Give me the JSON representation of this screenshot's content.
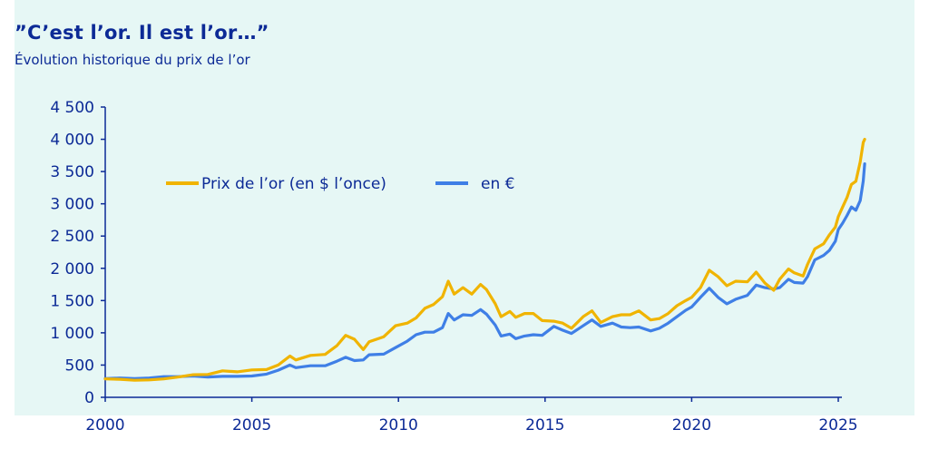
{
  "header": {
    "title": "”C’est l’or. Il est l’or…”",
    "subtitle": "Évolution historique du prix de l’or"
  },
  "colors": {
    "background": "#e6f7f5",
    "text": "#0c2a96",
    "usd": "#f0b400",
    "eur": "#3f7fe6",
    "axis": "#0c2a96"
  },
  "chart_data": {
    "type": "line",
    "title": "”C’est l’or. Il est l’or…”",
    "subtitle": "Évolution historique du prix de l’or",
    "xlim": [
      2000,
      2025
    ],
    "ylim": [
      0,
      4500
    ],
    "x_ticks": [
      2000,
      2005,
      2010,
      2015,
      2020,
      2025
    ],
    "x_tick_labels": [
      "2000",
      "2005",
      "2010",
      "2015",
      "2020",
      "2025"
    ],
    "y_ticks": [
      0,
      500,
      1000,
      1500,
      2000,
      2500,
      3000,
      3500,
      4000,
      4500
    ],
    "y_tick_labels": [
      "0",
      "500",
      "1 000",
      "1 500",
      "2 000",
      "2 500",
      "3 000",
      "3 500",
      "4 000",
      "4 500"
    ],
    "grid": false,
    "legend": "inside top-left",
    "series": [
      {
        "name": "Prix de l’or (en $ l’once)",
        "color": "#f0b400",
        "points": [
          [
            2000.0,
            285
          ],
          [
            2000.5,
            280
          ],
          [
            2001.0,
            265
          ],
          [
            2001.5,
            270
          ],
          [
            2002.0,
            285
          ],
          [
            2002.5,
            315
          ],
          [
            2003.0,
            350
          ],
          [
            2003.5,
            355
          ],
          [
            2004.0,
            410
          ],
          [
            2004.5,
            395
          ],
          [
            2005.0,
            425
          ],
          [
            2005.5,
            430
          ],
          [
            2005.9,
            500
          ],
          [
            2006.3,
            640
          ],
          [
            2006.5,
            580
          ],
          [
            2007.0,
            650
          ],
          [
            2007.5,
            665
          ],
          [
            2007.9,
            800
          ],
          [
            2008.2,
            960
          ],
          [
            2008.5,
            900
          ],
          [
            2008.8,
            740
          ],
          [
            2009.0,
            860
          ],
          [
            2009.5,
            940
          ],
          [
            2009.9,
            1110
          ],
          [
            2010.3,
            1150
          ],
          [
            2010.6,
            1230
          ],
          [
            2010.9,
            1380
          ],
          [
            2011.2,
            1440
          ],
          [
            2011.5,
            1560
          ],
          [
            2011.7,
            1800
          ],
          [
            2011.9,
            1600
          ],
          [
            2012.2,
            1700
          ],
          [
            2012.5,
            1600
          ],
          [
            2012.8,
            1750
          ],
          [
            2013.0,
            1670
          ],
          [
            2013.3,
            1450
          ],
          [
            2013.5,
            1250
          ],
          [
            2013.8,
            1330
          ],
          [
            2014.0,
            1240
          ],
          [
            2014.3,
            1300
          ],
          [
            2014.6,
            1300
          ],
          [
            2014.9,
            1190
          ],
          [
            2015.3,
            1180
          ],
          [
            2015.6,
            1150
          ],
          [
            2015.9,
            1070
          ],
          [
            2016.3,
            1250
          ],
          [
            2016.6,
            1340
          ],
          [
            2016.9,
            1160
          ],
          [
            2017.3,
            1250
          ],
          [
            2017.6,
            1280
          ],
          [
            2017.9,
            1280
          ],
          [
            2018.2,
            1340
          ],
          [
            2018.6,
            1200
          ],
          [
            2018.9,
            1220
          ],
          [
            2019.2,
            1300
          ],
          [
            2019.5,
            1420
          ],
          [
            2019.8,
            1500
          ],
          [
            2020.0,
            1550
          ],
          [
            2020.3,
            1700
          ],
          [
            2020.6,
            1970
          ],
          [
            2020.9,
            1870
          ],
          [
            2021.2,
            1730
          ],
          [
            2021.5,
            1800
          ],
          [
            2021.9,
            1790
          ],
          [
            2022.2,
            1940
          ],
          [
            2022.5,
            1770
          ],
          [
            2022.8,
            1660
          ],
          [
            2023.0,
            1830
          ],
          [
            2023.3,
            1990
          ],
          [
            2023.5,
            1930
          ],
          [
            2023.8,
            1880
          ],
          [
            2023.95,
            2060
          ],
          [
            2024.2,
            2300
          ],
          [
            2024.5,
            2380
          ],
          [
            2024.7,
            2520
          ],
          [
            2024.9,
            2640
          ],
          [
            2025.0,
            2800
          ],
          [
            2025.15,
            2950
          ],
          [
            2025.3,
            3100
          ],
          [
            2025.45,
            3300
          ],
          [
            2025.6,
            3350
          ],
          [
            2025.75,
            3650
          ],
          [
            2025.85,
            3950
          ],
          [
            2025.9,
            4000
          ]
        ]
      },
      {
        "name": "en €",
        "color": "#3f7fe6",
        "points": [
          [
            2000.0,
            290
          ],
          [
            2000.5,
            300
          ],
          [
            2001.0,
            290
          ],
          [
            2001.5,
            300
          ],
          [
            2002.0,
            320
          ],
          [
            2002.5,
            320
          ],
          [
            2003.0,
            330
          ],
          [
            2003.5,
            315
          ],
          [
            2004.0,
            325
          ],
          [
            2004.5,
            325
          ],
          [
            2005.0,
            330
          ],
          [
            2005.5,
            360
          ],
          [
            2005.9,
            420
          ],
          [
            2006.3,
            500
          ],
          [
            2006.5,
            460
          ],
          [
            2007.0,
            490
          ],
          [
            2007.5,
            490
          ],
          [
            2007.9,
            560
          ],
          [
            2008.2,
            620
          ],
          [
            2008.5,
            570
          ],
          [
            2008.8,
            580
          ],
          [
            2009.0,
            660
          ],
          [
            2009.5,
            670
          ],
          [
            2009.9,
            770
          ],
          [
            2010.3,
            870
          ],
          [
            2010.6,
            970
          ],
          [
            2010.9,
            1010
          ],
          [
            2011.2,
            1010
          ],
          [
            2011.5,
            1080
          ],
          [
            2011.7,
            1300
          ],
          [
            2011.9,
            1200
          ],
          [
            2012.2,
            1280
          ],
          [
            2012.5,
            1270
          ],
          [
            2012.8,
            1360
          ],
          [
            2013.0,
            1290
          ],
          [
            2013.3,
            1120
          ],
          [
            2013.5,
            950
          ],
          [
            2013.8,
            980
          ],
          [
            2014.0,
            910
          ],
          [
            2014.3,
            950
          ],
          [
            2014.6,
            970
          ],
          [
            2014.9,
            960
          ],
          [
            2015.3,
            1100
          ],
          [
            2015.6,
            1040
          ],
          [
            2015.9,
            990
          ],
          [
            2016.3,
            1110
          ],
          [
            2016.6,
            1200
          ],
          [
            2016.9,
            1100
          ],
          [
            2017.3,
            1150
          ],
          [
            2017.6,
            1090
          ],
          [
            2017.9,
            1080
          ],
          [
            2018.2,
            1090
          ],
          [
            2018.6,
            1030
          ],
          [
            2018.9,
            1070
          ],
          [
            2019.2,
            1150
          ],
          [
            2019.5,
            1250
          ],
          [
            2019.8,
            1350
          ],
          [
            2020.0,
            1400
          ],
          [
            2020.3,
            1550
          ],
          [
            2020.6,
            1690
          ],
          [
            2020.9,
            1550
          ],
          [
            2021.2,
            1450
          ],
          [
            2021.5,
            1520
          ],
          [
            2021.9,
            1580
          ],
          [
            2022.2,
            1740
          ],
          [
            2022.5,
            1700
          ],
          [
            2022.8,
            1680
          ],
          [
            2023.0,
            1700
          ],
          [
            2023.3,
            1830
          ],
          [
            2023.5,
            1780
          ],
          [
            2023.8,
            1770
          ],
          [
            2023.95,
            1870
          ],
          [
            2024.2,
            2130
          ],
          [
            2024.5,
            2200
          ],
          [
            2024.7,
            2280
          ],
          [
            2024.9,
            2420
          ],
          [
            2025.0,
            2600
          ],
          [
            2025.15,
            2700
          ],
          [
            2025.3,
            2820
          ],
          [
            2025.45,
            2950
          ],
          [
            2025.6,
            2900
          ],
          [
            2025.75,
            3050
          ],
          [
            2025.85,
            3350
          ],
          [
            2025.9,
            3620
          ]
        ]
      }
    ]
  }
}
